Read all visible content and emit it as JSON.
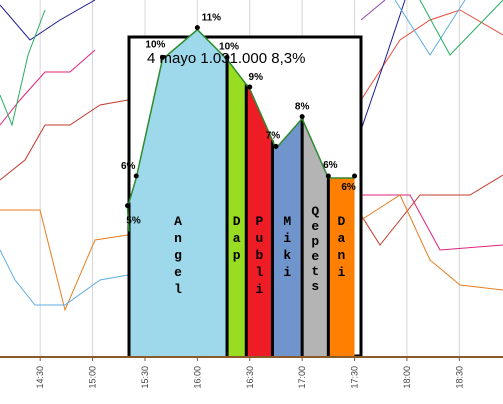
{
  "chart_data": {
    "type": "area",
    "title": "4 mayo 1.031.000 8,3%",
    "x_ticks": [
      "14:30",
      "15:00",
      "15:30",
      "16:00",
      "16:30",
      "17:00",
      "17:30",
      "18:00",
      "18:30"
    ],
    "x_range": [
      "14:07",
      "18:55"
    ],
    "y_unit": "%",
    "y_range": [
      0,
      12
    ],
    "points": [
      {
        "time": "15:20",
        "label": "5%",
        "value": 5
      },
      {
        "time": "15:25",
        "label": "6%",
        "value": 6
      },
      {
        "time": "15:40",
        "label": "10%",
        "value": 10
      },
      {
        "time": "16:00",
        "label": "11%",
        "value": 11
      },
      {
        "time": "16:17",
        "label": "10%",
        "value": 10
      },
      {
        "time": "16:30",
        "label": "9%",
        "value": 9
      },
      {
        "time": "16:45",
        "label": "7%",
        "value": 7
      },
      {
        "time": "17:00",
        "label": "8%",
        "value": 8
      },
      {
        "time": "17:15",
        "label": "6%",
        "value": 6
      },
      {
        "time": "17:30",
        "label": "6%",
        "value": 6
      }
    ],
    "segments": [
      {
        "label": "Angel",
        "start": "15:20",
        "end": "16:17",
        "color": "#9dd9ea"
      },
      {
        "label": "Dap",
        "start": "16:17",
        "end": "16:28",
        "color": "#99dd22"
      },
      {
        "label": "Publi",
        "start": "16:28",
        "end": "16:43",
        "color": "#ee1c24"
      },
      {
        "label": "Miki",
        "start": "16:43",
        "end": "17:00",
        "color": "#7094cc"
      },
      {
        "label": "Qepets",
        "start": "17:00",
        "end": "17:15",
        "color": "#b4b4b4"
      },
      {
        "label": "Dani",
        "start": "17:15",
        "end": "17:30",
        "color": "#ff8000"
      }
    ],
    "highlight_line_color": "#2e8b2e",
    "background_series_colors": [
      "#1a1a8c",
      "#e0227e",
      "#c0392b",
      "#e67e22",
      "#5dade2",
      "#27ae60",
      "#8e44ad",
      "#e74c3c"
    ],
    "axis_color": "#8b5a2b",
    "grid": true
  }
}
